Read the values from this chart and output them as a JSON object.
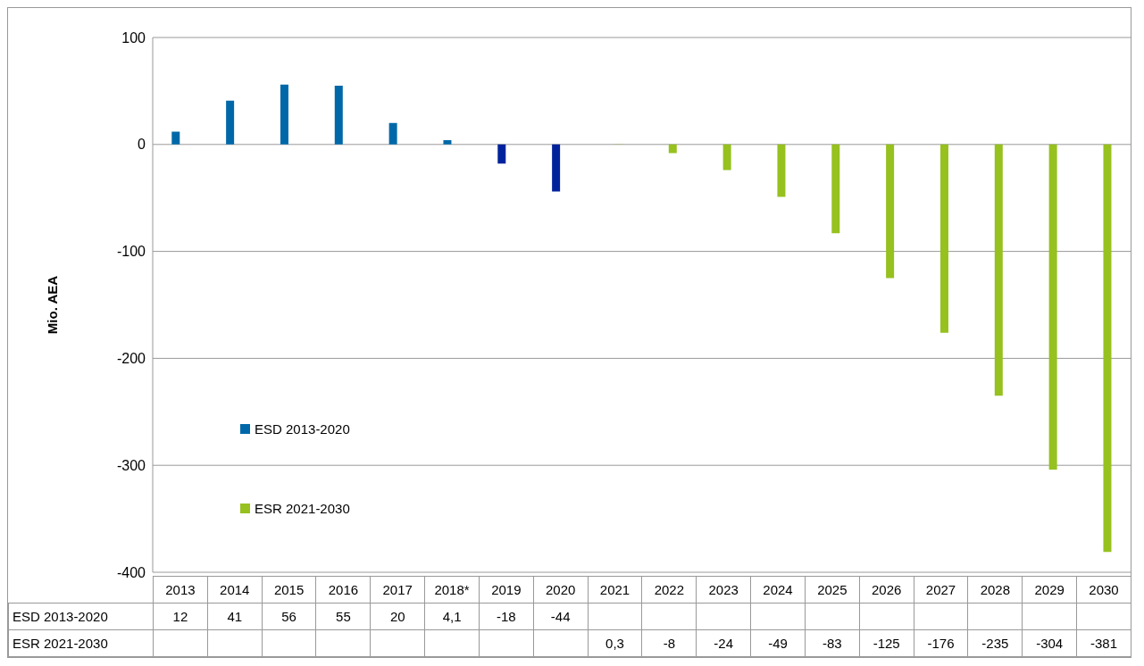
{
  "chart_data": {
    "type": "bar",
    "ylabel": "Mio. AEA",
    "categories": [
      "2013",
      "2014",
      "2015",
      "2016",
      "2017",
      "2018*",
      "2019",
      "2020",
      "2021",
      "2022",
      "2023",
      "2024",
      "2025",
      "2026",
      "2027",
      "2028",
      "2029",
      "2030"
    ],
    "series": [
      {
        "name": "ESD 2013-2020",
        "color": "#0068a8",
        "colors": [
          "#0068a8",
          "#0068a8",
          "#0068a8",
          "#0068a8",
          "#0068a8",
          "#0068a8",
          "#00239c",
          "#00239c",
          null,
          null,
          null,
          null,
          null,
          null,
          null,
          null,
          null,
          null
        ],
        "values": [
          12,
          41,
          56,
          55,
          20,
          4.1,
          -18,
          -44,
          null,
          null,
          null,
          null,
          null,
          null,
          null,
          null,
          null,
          null
        ],
        "value_labels": [
          "12",
          "41",
          "56",
          "55",
          "20",
          "4,1",
          "-18",
          "-44",
          null,
          null,
          null,
          null,
          null,
          null,
          null,
          null,
          null,
          null
        ]
      },
      {
        "name": "ESR 2021-2030",
        "color": "#96c11e",
        "values": [
          null,
          null,
          null,
          null,
          null,
          null,
          null,
          null,
          0.3,
          -8,
          -24,
          -49,
          -83,
          -125,
          -176,
          -235,
          -304,
          -381
        ],
        "value_labels": [
          null,
          null,
          null,
          null,
          null,
          null,
          null,
          null,
          "0,3",
          "-8",
          "-24",
          "-49",
          "-83",
          "-125",
          "-176",
          "-235",
          "-304",
          "-381"
        ]
      }
    ],
    "ylim": [
      -400,
      100
    ],
    "yticks": [
      -400,
      -300,
      -200,
      -100,
      0,
      100
    ],
    "grid": "y",
    "legend": "left"
  }
}
